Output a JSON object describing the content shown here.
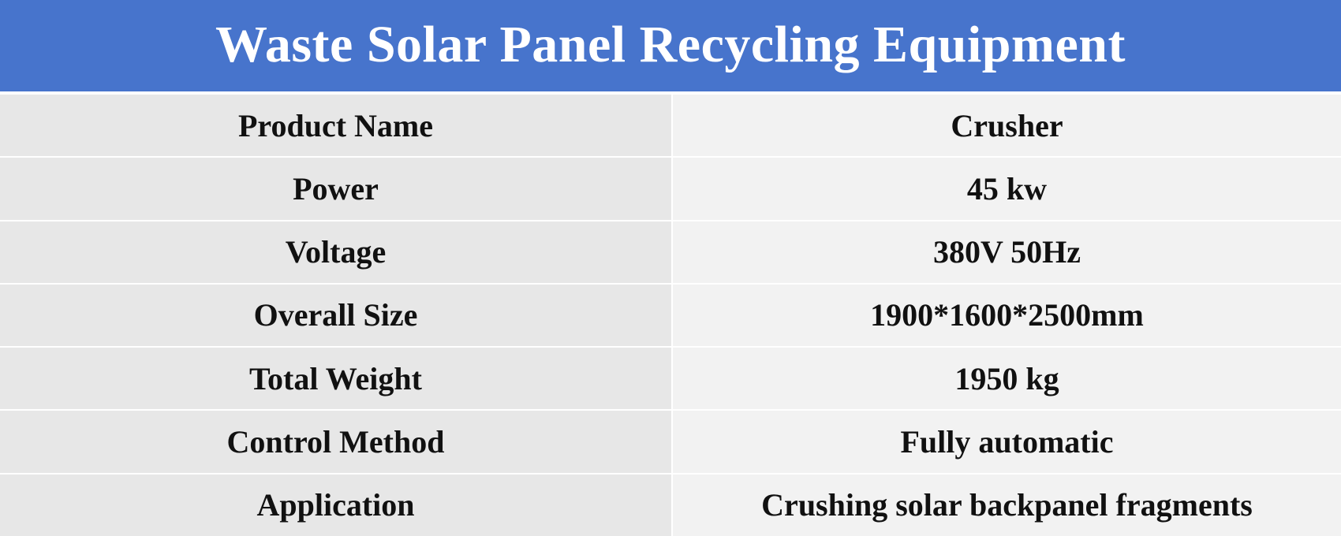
{
  "title": "Waste Solar Panel Recycling Equipment",
  "colors": {
    "header_background": "#4774cc",
    "header_text": "#ffffff",
    "label_cell_background": "#e7e7e7",
    "value_cell_background": "#f2f2f2",
    "cell_text": "#111111"
  },
  "rows": [
    {
      "label": "Product Name",
      "value": "Crusher"
    },
    {
      "label": "Power",
      "value": "45 kw"
    },
    {
      "label": "Voltage",
      "value": "380V 50Hz"
    },
    {
      "label": "Overall Size",
      "value": "1900*1600*2500mm"
    },
    {
      "label": "Total Weight",
      "value": "1950 kg"
    },
    {
      "label": "Control Method",
      "value": "Fully automatic"
    },
    {
      "label": "Application",
      "value": "Crushing solar backpanel fragments"
    }
  ]
}
